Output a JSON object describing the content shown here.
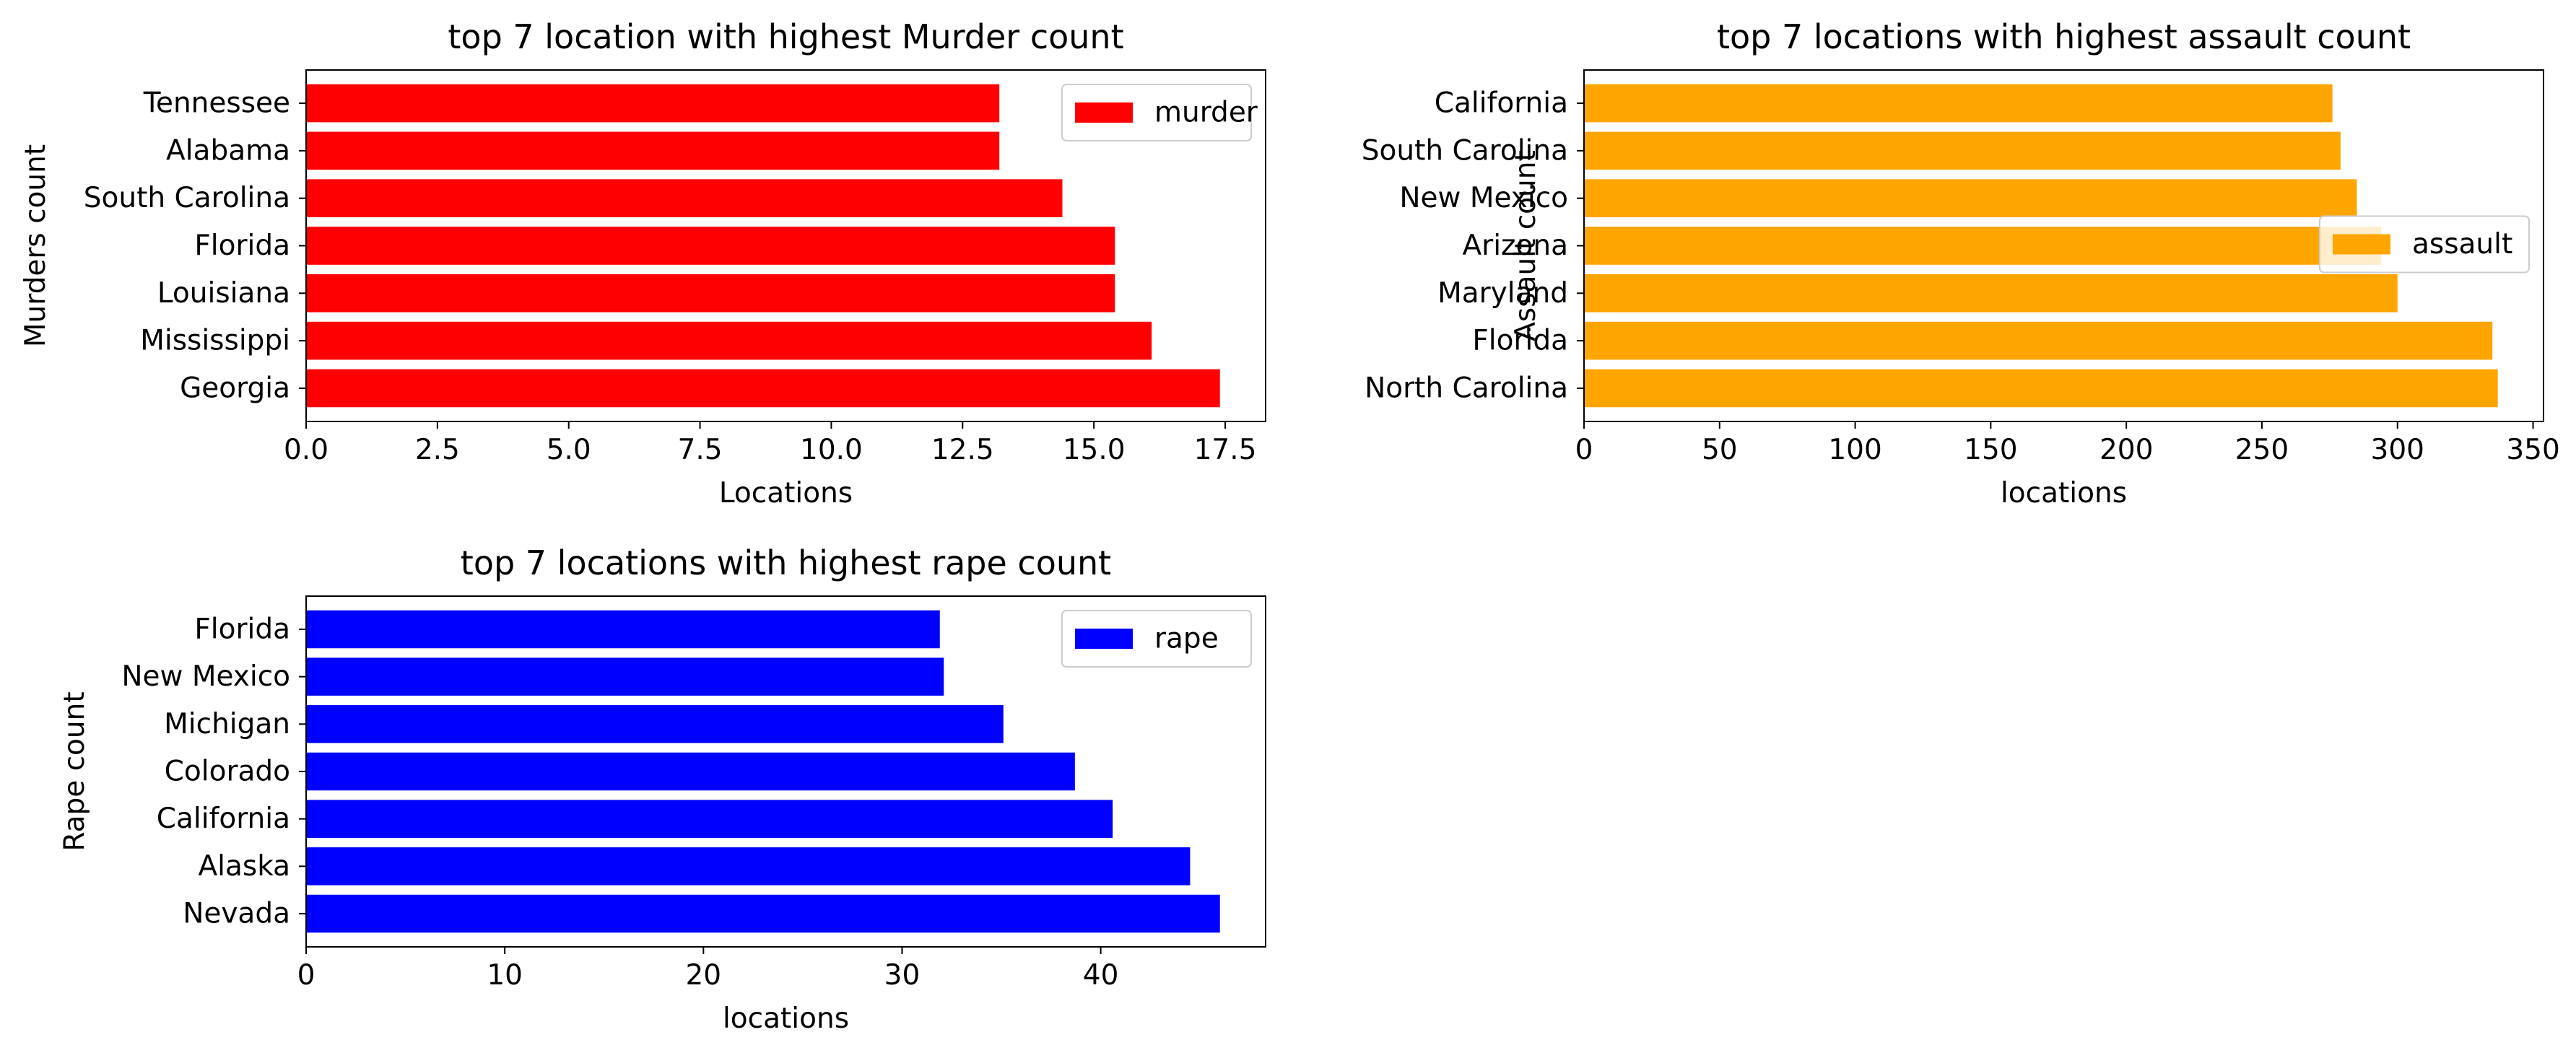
{
  "chart_data": [
    {
      "type": "bar",
      "orientation": "horizontal",
      "title": "top 7 location with highest Murder count",
      "xlabel": "Locations",
      "ylabel": "Murders count",
      "categories": [
        "Georgia",
        "Mississippi",
        "Louisiana",
        "Florida",
        "South Carolina",
        "Alabama",
        "Tennessee"
      ],
      "series": [
        {
          "name": "murder",
          "values": [
            17.4,
            16.1,
            15.4,
            15.4,
            14.4,
            13.2,
            13.2
          ]
        }
      ],
      "xlim": [
        0,
        18.27
      ],
      "xticks": [
        "0.0",
        "2.5",
        "5.0",
        "7.5",
        "10.0",
        "12.5",
        "15.0",
        "17.5"
      ],
      "xtick_values": [
        0,
        2.5,
        5,
        7.5,
        10,
        12.5,
        15,
        17.5
      ],
      "color": "#ff0000",
      "legend": "upper right",
      "grid": false
    },
    {
      "type": "bar",
      "orientation": "horizontal",
      "title": "top 7 locations with highest assault count",
      "xlabel": "locations",
      "ylabel": "Assault count",
      "categories": [
        "North Carolina",
        "Florida",
        "Maryland",
        "Arizona",
        "New Mexico",
        "South Carolina",
        "California"
      ],
      "series": [
        {
          "name": "assault",
          "values": [
            337,
            335,
            300,
            294,
            285,
            279,
            276
          ]
        }
      ],
      "xlim": [
        0,
        353.85
      ],
      "xticks": [
        "0",
        "50",
        "100",
        "150",
        "200",
        "250",
        "300",
        "350"
      ],
      "xtick_values": [
        0,
        50,
        100,
        150,
        200,
        250,
        300,
        350
      ],
      "color": "#ffa500",
      "legend": "center right",
      "grid": false
    },
    {
      "type": "bar",
      "orientation": "horizontal",
      "title": "top 7 locations with highest rape count",
      "xlabel": "locations",
      "ylabel": "Rape count",
      "categories": [
        "Nevada",
        "Alaska",
        "California",
        "Colorado",
        "Michigan",
        "New Mexico",
        "Florida"
      ],
      "series": [
        {
          "name": "rape",
          "values": [
            46.0,
            44.5,
            40.6,
            38.7,
            35.1,
            32.1,
            31.9
          ]
        }
      ],
      "xlim": [
        0,
        48.3
      ],
      "xticks": [
        "0",
        "10",
        "20",
        "30",
        "40"
      ],
      "xtick_values": [
        0,
        10,
        20,
        30,
        40
      ],
      "color": "#0000ff",
      "legend": "upper right",
      "grid": false
    }
  ]
}
